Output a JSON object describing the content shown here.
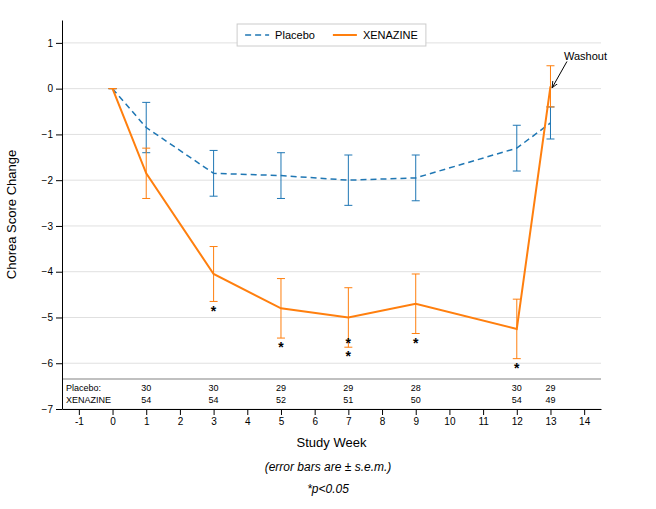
{
  "chart_data": {
    "type": "line",
    "xlabel": "Study Week",
    "ylabel": "Chorea Score Change",
    "x": [
      0,
      1,
      3,
      5,
      7,
      9,
      12,
      13
    ],
    "series": [
      {
        "name": "Placebo",
        "line_style": "dashed",
        "values": [
          0,
          -0.85,
          -1.85,
          -1.9,
          -2.0,
          -1.95,
          -1.3,
          -0.75
        ],
        "errors": [
          0.0,
          0.55,
          0.5,
          0.5,
          0.55,
          0.5,
          0.5,
          0.35
        ]
      },
      {
        "name": "XENAZINE",
        "line_style": "solid",
        "values": [
          0,
          -1.85,
          -4.05,
          -4.8,
          -5.0,
          -4.7,
          -5.25,
          0.05
        ],
        "errors": [
          0.0,
          0.55,
          0.6,
          0.65,
          0.65,
          0.65,
          0.65,
          0.45
        ]
      }
    ],
    "xlim": [
      -1.5,
      14.5
    ],
    "ylim": [
      -7,
      1.5
    ],
    "xticks": [
      -1,
      0,
      1,
      2,
      3,
      4,
      5,
      6,
      7,
      8,
      9,
      10,
      11,
      12,
      13,
      14
    ],
    "yticks": [
      1,
      0,
      {
        "value": -1,
        "label": "−1"
      },
      {
        "value": -2,
        "label": "−2"
      },
      {
        "value": -3,
        "label": "−3"
      },
      {
        "value": -4,
        "label": "−4"
      },
      {
        "value": -5,
        "label": "−5"
      },
      {
        "value": -6,
        "label": "−6"
      },
      {
        "value": -7,
        "label": "−7"
      }
    ],
    "grid": true,
    "legend": "upper center",
    "annotations": [
      {
        "text": "*",
        "x": 3,
        "y": -4.85
      },
      {
        "text": "*",
        "x": 5,
        "y": -5.65
      },
      {
        "text": "*",
        "x": 7,
        "y": -5.85
      },
      {
        "text": "*",
        "x": 7,
        "y": -5.55
      },
      {
        "text": "*",
        "x": 9,
        "y": -5.55
      },
      {
        "text": "*",
        "x": 12,
        "y": -6.1
      },
      {
        "text": "Washout",
        "x": 13.4,
        "y": 0.55,
        "arrow_x": 13.05,
        "arrow_y": 0.02
      }
    ],
    "table": {
      "x": [
        1,
        3,
        5,
        7,
        9,
        12,
        13
      ],
      "rows": [
        {
          "label": "Placebo:",
          "values": [
            30,
            30,
            29,
            29,
            28,
            30,
            29
          ]
        },
        {
          "label": "XENAZINE",
          "values": [
            54,
            54,
            52,
            51,
            50,
            54,
            49
          ]
        }
      ]
    },
    "notes": [
      "(error bars are ± s.e.m.)",
      "*p<0.05"
    ]
  }
}
